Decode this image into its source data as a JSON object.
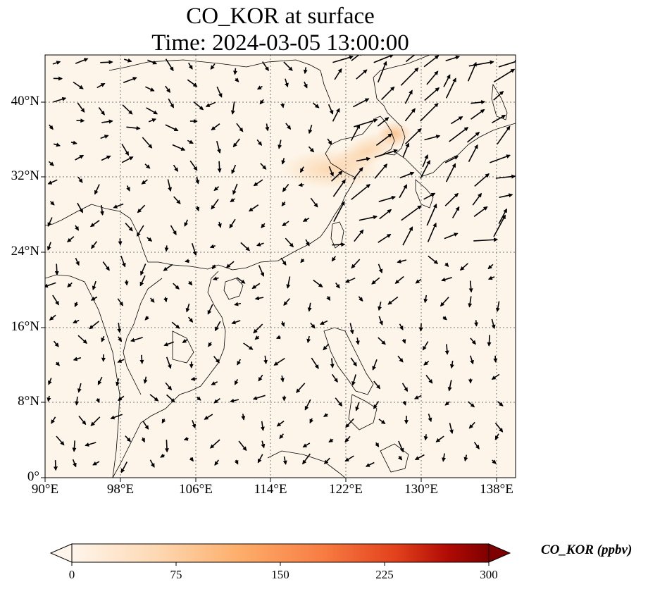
{
  "title": {
    "line1": "CO_KOR at surface",
    "line2": "Time: 2024-03-05 13:00:00"
  },
  "map": {
    "extent": {
      "lon": [
        90,
        140
      ],
      "lat": [
        0,
        45
      ]
    },
    "gridlines": "dotted",
    "background_color": "#fdf5e9",
    "coast_color": "#000000",
    "lon_ticks": [
      "90°E",
      "98°E",
      "106°E",
      "114°E",
      "122°E",
      "130°E",
      "138°E"
    ],
    "lat_ticks": [
      "0°",
      "8°N",
      "16°N",
      "24°N",
      "32°N",
      "40°N"
    ],
    "field_variable": "CO_KOR",
    "high_concentration_region": "Korean peninsula and Yellow Sea",
    "wind_vectors": "black quiver arrows"
  },
  "colorbar": {
    "label": "CO_KOR (ppbv)",
    "ticks": [
      "0",
      "75",
      "150",
      "225",
      "300"
    ],
    "range": [
      0,
      300
    ],
    "colormap": "Oranges/Red",
    "extend": "both",
    "colors": [
      "#fff5eb",
      "#fdd9b4",
      "#fdae6b",
      "#f87d43",
      "#e2401c",
      "#b10b05",
      "#7f0000"
    ]
  }
}
